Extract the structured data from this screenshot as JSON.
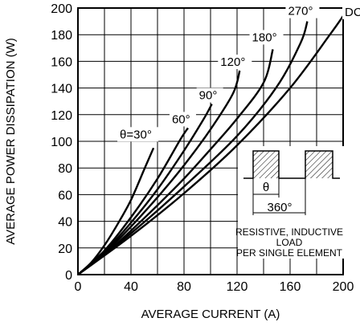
{
  "chart_data": {
    "type": "line",
    "title": "",
    "xlabel": "AVERAGE CURRENT (A)",
    "ylabel": "AVERAGE POWER DISSIPATION (W)",
    "xlim": [
      0,
      200
    ],
    "ylim": [
      0,
      200
    ],
    "xticks": [
      0,
      40,
      80,
      120,
      160,
      200
    ],
    "yticks": [
      0,
      20,
      40,
      60,
      80,
      100,
      120,
      140,
      160,
      180,
      200
    ],
    "grid": true,
    "series": [
      {
        "name": "θ=30°",
        "x": [
          0,
          10,
          20,
          30,
          40,
          50,
          57
        ],
        "y": [
          0,
          9,
          22,
          38,
          56,
          79,
          95
        ]
      },
      {
        "name": "60°",
        "x": [
          0,
          20,
          40,
          60,
          77,
          83
        ],
        "y": [
          0,
          18,
          43,
          72,
          101,
          110
        ]
      },
      {
        "name": "90°",
        "x": [
          0,
          20,
          40,
          60,
          80,
          95,
          101
        ],
        "y": [
          0,
          17,
          39,
          64,
          93,
          117,
          128
        ]
      },
      {
        "name": "120°",
        "x": [
          0,
          20,
          40,
          60,
          80,
          100,
          117,
          122
        ],
        "y": [
          0,
          16,
          36,
          58,
          82,
          109,
          136,
          153
        ]
      },
      {
        "name": "180°",
        "x": [
          0,
          20,
          40,
          60,
          80,
          100,
          120,
          140,
          147
        ],
        "y": [
          0,
          15,
          33,
          52,
          72,
          94,
          117,
          144,
          169
        ]
      },
      {
        "name": "270°",
        "x": [
          0,
          40,
          80,
          120,
          150,
          168,
          173
        ],
        "y": [
          0,
          31,
          66,
          104,
          141,
          174,
          190
        ]
      },
      {
        "name": "DC",
        "x": [
          0,
          40,
          80,
          120,
          160,
          190,
          200
        ],
        "y": [
          0,
          29,
          61,
          97,
          140,
          180,
          194
        ]
      }
    ],
    "annotations": {
      "theta_symbol": "θ",
      "period_label": "360°",
      "note_lines": [
        "RESISTIVE, INDUCTIVE",
        "LOAD",
        "PER SINGLE ELEMENT"
      ]
    }
  }
}
